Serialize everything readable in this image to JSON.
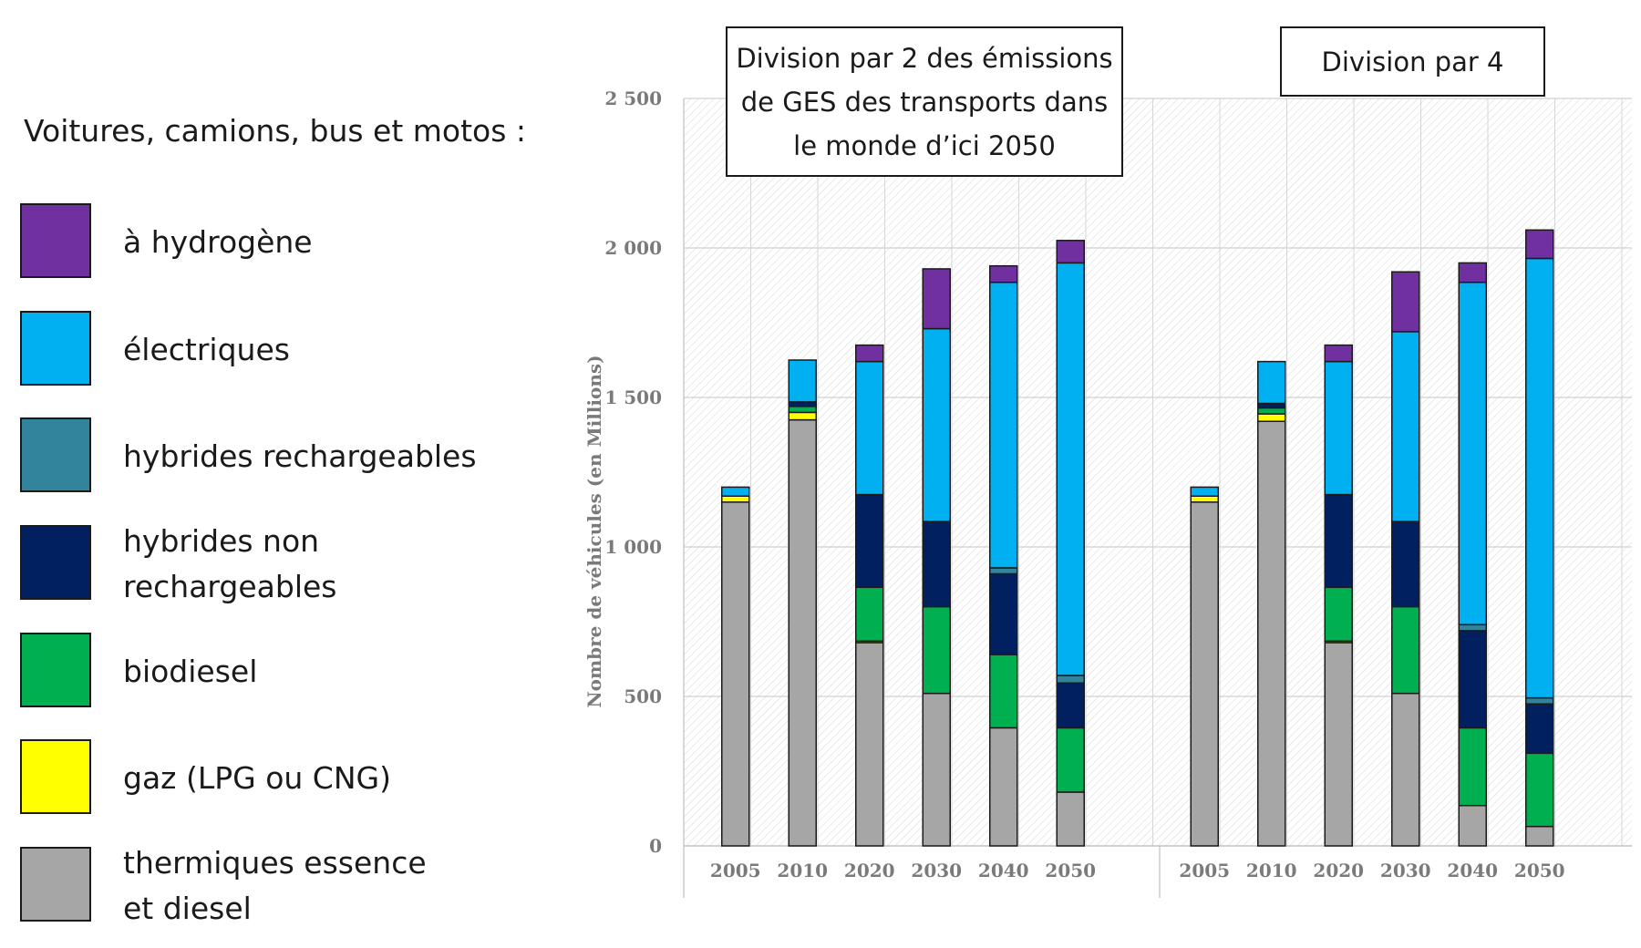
{
  "legend": {
    "title": "Voitures, camions, bus et motos :",
    "items": [
      {
        "label": "à hydrogène",
        "color": "#7030a0"
      },
      {
        "label": "électriques",
        "color": "#00b0f0"
      },
      {
        "label": "hybrides rechargeables",
        "color": "#31849b"
      },
      {
        "label": "hybrides non rechargeables",
        "color": "#002060"
      },
      {
        "label": "biodiesel",
        "color": "#00b050"
      },
      {
        "label": "gaz (LPG ou CNG)",
        "color": "#ffff00"
      },
      {
        "label": "thermiques essence et diesel",
        "color": "#a6a6a6"
      }
    ]
  },
  "scenarios": [
    {
      "label": "Division par 2 des émissions de GES des transports dans le monde d’ici 2050"
    },
    {
      "label": "Division par 4"
    }
  ],
  "chart_data": {
    "type": "bar",
    "stacked": true,
    "title": "",
    "xlabel": "",
    "ylabel": "Nombre de véhicules (en Millions)",
    "ylim": [
      0,
      2500
    ],
    "yticks": [
      0,
      500,
      1000,
      1500,
      2000,
      2500
    ],
    "ytick_labels": [
      "0",
      "500",
      "1 000",
      "1 500",
      "2 000",
      "2 500"
    ],
    "grid": true,
    "categories": [
      "2005",
      "2010",
      "2020",
      "2030",
      "2040",
      "2050"
    ],
    "series": [
      {
        "name": "thermiques essence et diesel",
        "color": "#a6a6a6",
        "groups": [
          [
            1150,
            1425,
            680,
            510,
            395,
            180
          ],
          [
            1150,
            1420,
            680,
            510,
            135,
            65
          ]
        ]
      },
      {
        "name": "gaz (LPG ou CNG)",
        "color": "#ffff00",
        "groups": [
          [
            20,
            25,
            5,
            0,
            0,
            0
          ],
          [
            20,
            25,
            5,
            0,
            0,
            0
          ]
        ]
      },
      {
        "name": "biodiesel",
        "color": "#00b050",
        "groups": [
          [
            0,
            20,
            180,
            290,
            245,
            215
          ],
          [
            0,
            20,
            180,
            290,
            260,
            245
          ]
        ]
      },
      {
        "name": "hybrides non rechargeables",
        "color": "#002060",
        "groups": [
          [
            0,
            15,
            310,
            285,
            270,
            150
          ],
          [
            0,
            15,
            310,
            285,
            325,
            165
          ]
        ]
      },
      {
        "name": "hybrides rechargeables",
        "color": "#31849b",
        "groups": [
          [
            0,
            0,
            0,
            0,
            20,
            25
          ],
          [
            0,
            0,
            0,
            0,
            20,
            20
          ]
        ]
      },
      {
        "name": "électriques",
        "color": "#00b0f0",
        "groups": [
          [
            30,
            140,
            445,
            645,
            955,
            1380
          ],
          [
            30,
            140,
            445,
            635,
            1145,
            1470
          ]
        ]
      },
      {
        "name": "à hydrogène",
        "color": "#7030a0",
        "groups": [
          [
            0,
            0,
            55,
            200,
            55,
            75
          ],
          [
            0,
            0,
            55,
            200,
            65,
            95
          ]
        ]
      }
    ]
  }
}
